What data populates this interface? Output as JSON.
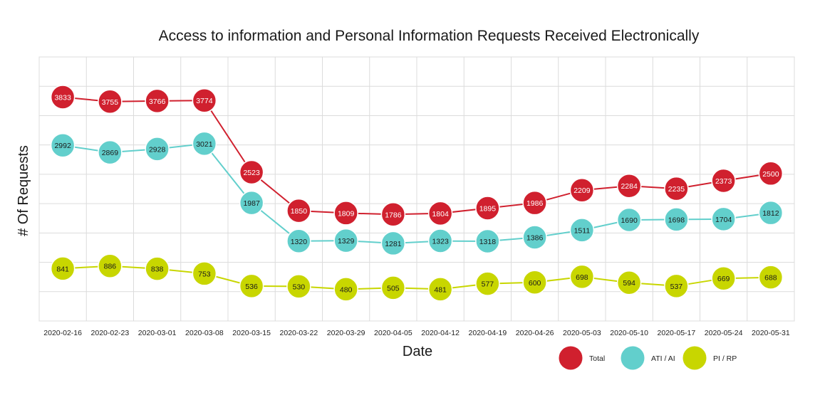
{
  "chart_data": {
    "type": "line",
    "title": "Access to information and Personal Information Requests Received Electronically",
    "xlabel": "Date",
    "ylabel": "# Of Requests",
    "categories": [
      "2020-02-16",
      "2020-02-23",
      "2020-03-01",
      "2020-03-08",
      "2020-03-15",
      "2020-03-22",
      "2020-03-29",
      "2020-04-05",
      "2020-04-12",
      "2020-04-19",
      "2020-04-26",
      "2020-05-03",
      "2020-05-10",
      "2020-05-17",
      "2020-05-24",
      "2020-05-31"
    ],
    "series": [
      {
        "name": "Total",
        "color": "#d0202e",
        "label_color": "#ffffff",
        "values": [
          3833,
          3755,
          3766,
          3774,
          2523,
          1850,
          1809,
          1786,
          1804,
          1895,
          1986,
          2209,
          2284,
          2235,
          2373,
          2500
        ]
      },
      {
        "name": "ATI / AI",
        "color": "#62cfcc",
        "label_color": "#1a1a1a",
        "values": [
          2992,
          2869,
          2928,
          3021,
          1987,
          1320,
          1329,
          1281,
          1323,
          1318,
          1386,
          1511,
          1690,
          1698,
          1704,
          1812
        ]
      },
      {
        "name": "PI / RP",
        "color": "#c8d600",
        "label_color": "#1a1a1a",
        "values": [
          841,
          886,
          838,
          753,
          536,
          530,
          480,
          505,
          481,
          577,
          600,
          698,
          594,
          537,
          669,
          688
        ]
      }
    ],
    "grid": true,
    "legend": "bottom-right"
  }
}
